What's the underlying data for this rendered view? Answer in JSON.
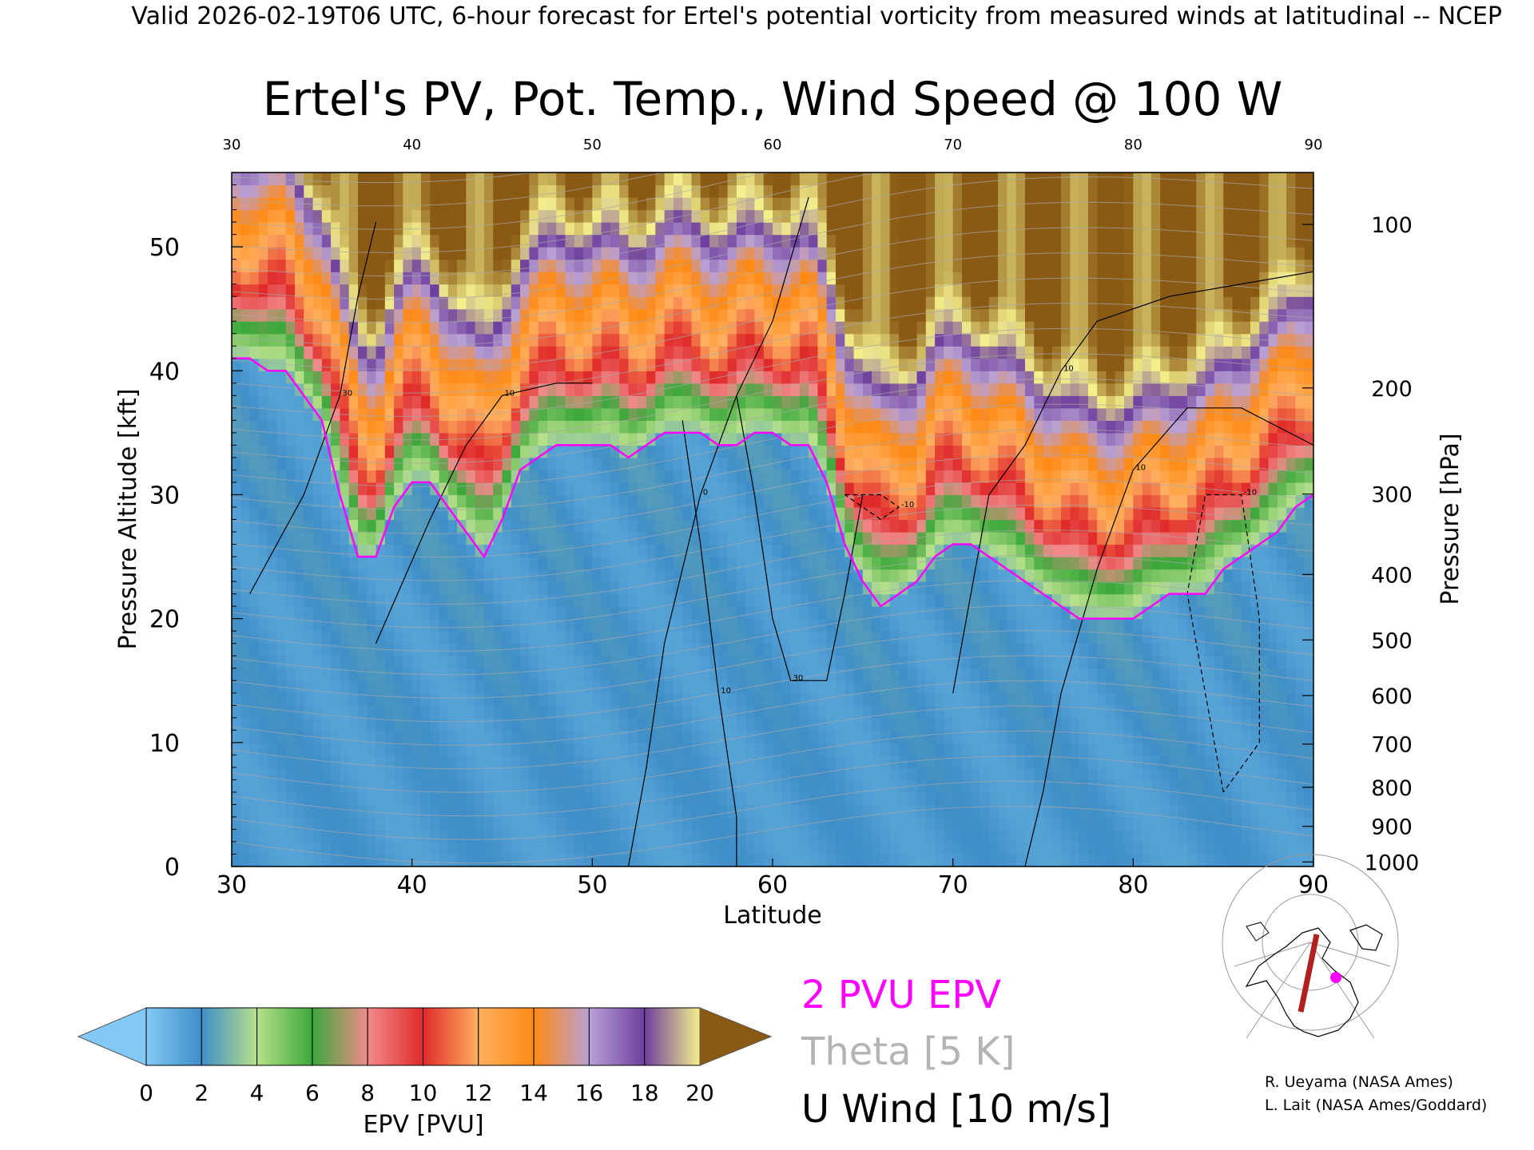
{
  "header": "Valid 2026-02-19T06 UTC, 6-hour forecast for Ertel's potential vorticity from measured winds at latitudinal -- NCEP",
  "title": "Ertel's PV, Pot. Temp., Wind Speed @ 100 W",
  "legend": {
    "epv_label": "2 PVU EPV",
    "theta_label": "Theta [5 K]",
    "wind_label": "U Wind [10 m/s]"
  },
  "colorbar": {
    "label": "EPV [PVU]",
    "ticks": [
      "0",
      "2",
      "4",
      "6",
      "8",
      "10",
      "12",
      "14",
      "16",
      "18",
      "20"
    ],
    "colors": [
      "#82c9f5",
      "#3f8ec7",
      "#b7e08a",
      "#3ca83c",
      "#f28a8a",
      "#e02a2a",
      "#ffb060",
      "#ff8a14",
      "#b9a0d4",
      "#6e3f9e",
      "#f5f08c",
      "#8a5a14"
    ]
  },
  "credits": [
    "R. Ueyama (NASA Ames)",
    "L. Lait (NASA Ames/Goddard)"
  ],
  "chart_data": {
    "type": "heatmap",
    "title": "Ertel's PV, Pot. Temp., Wind Speed @ 100 W",
    "xlabel": "Latitude",
    "ylabel": "Pressure Altitude [kft]",
    "y2label": "Pressure [hPa]",
    "xlim": [
      30,
      90
    ],
    "ylim": [
      0,
      56
    ],
    "x_ticks": [
      "30",
      "40",
      "50",
      "60",
      "70",
      "80",
      "90"
    ],
    "y_ticks": [
      "0",
      "10",
      "20",
      "30",
      "40",
      "50"
    ],
    "pressure_ticks": [
      "100",
      "200",
      "300",
      "400",
      "500",
      "600",
      "700",
      "800",
      "900",
      "1000"
    ],
    "tropopause_2pvu_kft": [
      [
        30,
        41
      ],
      [
        31,
        41
      ],
      [
        32,
        40
      ],
      [
        33,
        40
      ],
      [
        34,
        38
      ],
      [
        35,
        36
      ],
      [
        36,
        30
      ],
      [
        37,
        25
      ],
      [
        38,
        25
      ],
      [
        39,
        29
      ],
      [
        40,
        31
      ],
      [
        41,
        31
      ],
      [
        42,
        29
      ],
      [
        43,
        27
      ],
      [
        44,
        25
      ],
      [
        45,
        28
      ],
      [
        46,
        32
      ],
      [
        47,
        33
      ],
      [
        48,
        34
      ],
      [
        49,
        34
      ],
      [
        50,
        34
      ],
      [
        51,
        34
      ],
      [
        52,
        33
      ],
      [
        53,
        34
      ],
      [
        54,
        35
      ],
      [
        55,
        35
      ],
      [
        56,
        35
      ],
      [
        57,
        34
      ],
      [
        58,
        34
      ],
      [
        59,
        35
      ],
      [
        60,
        35
      ],
      [
        61,
        34
      ],
      [
        62,
        34
      ],
      [
        63,
        31
      ],
      [
        64,
        26
      ],
      [
        65,
        23
      ],
      [
        66,
        21
      ],
      [
        67,
        22
      ],
      [
        68,
        23
      ],
      [
        69,
        25
      ],
      [
        70,
        26
      ],
      [
        71,
        26
      ],
      [
        72,
        25
      ],
      [
        73,
        24
      ],
      [
        74,
        23
      ],
      [
        75,
        22
      ],
      [
        76,
        21
      ],
      [
        77,
        20
      ],
      [
        78,
        20
      ],
      [
        79,
        20
      ],
      [
        80,
        20
      ],
      [
        81,
        21
      ],
      [
        82,
        22
      ],
      [
        83,
        22
      ],
      [
        84,
        22
      ],
      [
        85,
        24
      ],
      [
        86,
        25
      ],
      [
        87,
        26
      ],
      [
        88,
        27
      ],
      [
        89,
        29
      ],
      [
        90,
        30
      ]
    ],
    "stratosphere_pvu_by_height": [
      {
        "above_tropopause_kft": 0,
        "pvu": 2
      },
      {
        "above_tropopause_kft": 3,
        "pvu": 5
      },
      {
        "above_tropopause_kft": 6,
        "pvu": 9
      },
      {
        "above_tropopause_kft": 11,
        "pvu": 12
      },
      {
        "above_tropopause_kft": 15,
        "pvu": 15
      },
      {
        "above_tropopause_kft": 18,
        "pvu": 19
      },
      {
        "above_tropopause_kft": 22,
        "pvu": 21
      }
    ],
    "troposphere_pvu_range": [
      0,
      2
    ],
    "u_wind_contours": [
      {
        "label": "10",
        "points": [
          [
            38,
            18
          ],
          [
            41,
            28
          ],
          [
            43,
            34
          ],
          [
            45,
            38
          ],
          [
            48,
            39
          ],
          [
            50,
            39
          ]
        ]
      },
      {
        "label": "30",
        "points": [
          [
            31,
            22
          ],
          [
            34,
            30
          ],
          [
            36,
            38
          ],
          [
            37,
            46
          ],
          [
            38,
            52
          ]
        ]
      },
      {
        "label": "30",
        "points": [
          [
            58,
            38
          ],
          [
            59,
            30
          ],
          [
            60,
            20
          ],
          [
            61,
            15
          ],
          [
            63,
            15
          ],
          [
            64,
            22
          ],
          [
            65,
            30
          ]
        ]
      },
      {
        "label": "10",
        "points": [
          [
            55,
            36
          ],
          [
            56,
            26
          ],
          [
            57,
            14
          ],
          [
            58,
            4
          ],
          [
            58,
            0
          ]
        ]
      },
      {
        "label": "10",
        "points": [
          [
            70,
            14
          ],
          [
            71,
            22
          ],
          [
            72,
            30
          ],
          [
            74,
            34
          ],
          [
            76,
            40
          ],
          [
            78,
            44
          ],
          [
            82,
            46
          ],
          [
            90,
            48
          ]
        ]
      },
      {
        "label": "10",
        "points": [
          [
            74,
            0
          ],
          [
            75,
            6
          ],
          [
            76,
            14
          ],
          [
            78,
            24
          ],
          [
            80,
            32
          ],
          [
            83,
            37
          ],
          [
            86,
            37
          ],
          [
            90,
            34
          ]
        ]
      },
      {
        "label": "0",
        "points": [
          [
            52,
            0
          ],
          [
            53,
            8
          ],
          [
            54,
            18
          ],
          [
            56,
            30
          ],
          [
            58,
            38
          ],
          [
            60,
            44
          ],
          [
            62,
            54
          ]
        ]
      },
      {
        "label": "-10",
        "points": [
          [
            64,
            30
          ],
          [
            66,
            30
          ],
          [
            67,
            29
          ],
          [
            66,
            28
          ],
          [
            64,
            30
          ]
        ]
      },
      {
        "label": "-10",
        "points": [
          [
            85,
            6
          ],
          [
            84,
            14
          ],
          [
            83,
            22
          ],
          [
            84,
            30
          ],
          [
            86,
            30
          ],
          [
            87,
            20
          ],
          [
            87,
            10
          ],
          [
            85,
            6
          ]
        ]
      }
    ]
  }
}
